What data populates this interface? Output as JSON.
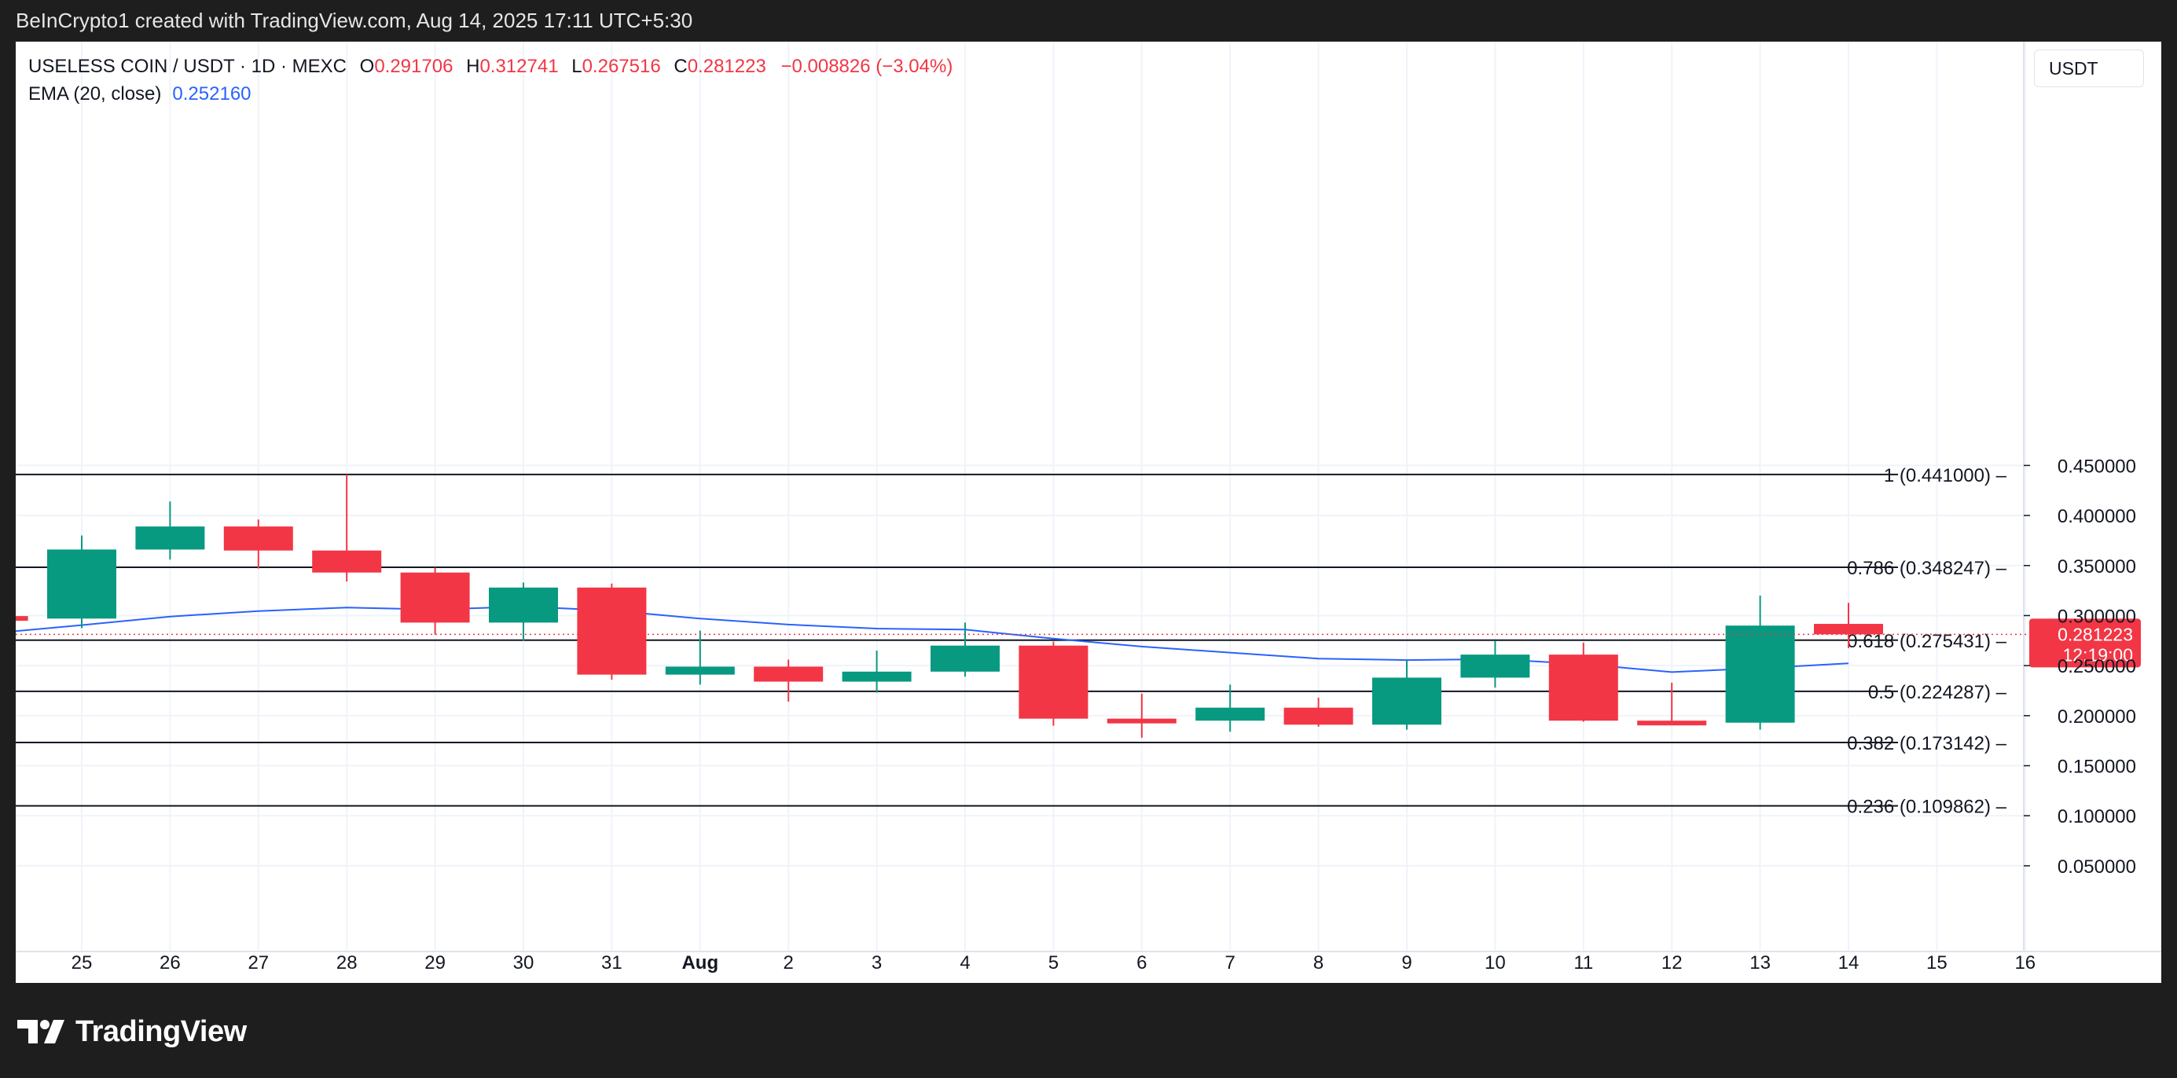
{
  "header": {
    "attribution": "BeInCrypto1 created with TradingView.com, Aug 14, 2025 17:11 UTC+5:30"
  },
  "legend": {
    "symbol": "USELESS COIN / USDT · 1D · MEXC",
    "open_label": "O",
    "open_value": "0.291706",
    "high_label": "H",
    "high_value": "0.312741",
    "low_label": "L",
    "low_value": "0.267516",
    "close_label": "C",
    "close_value": "0.281223",
    "change": "−0.008826 (−3.04%)",
    "ema_label": "EMA (20, close)",
    "ema_value": "0.252160"
  },
  "currency": "USDT",
  "footer": {
    "brand": "TradingView"
  },
  "colors": {
    "up": "#089981",
    "down": "#f23645",
    "ema": "#2962ff",
    "grid": "#f0f3fa",
    "fib_line": "#131722",
    "axis_text": "#131722",
    "price_tag": "#f23645"
  },
  "chart_data": {
    "type": "candlestick",
    "y_axis_side": "right",
    "x_tick_labels": [
      "25",
      "26",
      "27",
      "28",
      "29",
      "30",
      "31",
      "Aug",
      "2",
      "3",
      "4",
      "5",
      "6",
      "7",
      "8",
      "9",
      "10",
      "11",
      "12",
      "13",
      "14",
      "15",
      "16"
    ],
    "y_tick_labels": [
      "0.450000",
      "0.400000",
      "0.350000",
      "0.300000",
      "0.250000",
      "0.200000",
      "0.150000",
      "0.100000",
      "0.050000"
    ],
    "y_tick_values": [
      0.45,
      0.4,
      0.35,
      0.3,
      0.25,
      0.2,
      0.15,
      0.1,
      0.05
    ],
    "grid": true,
    "candles": [
      {
        "date": "24",
        "open": 0.2995,
        "high": 0.3005,
        "low": 0.2955,
        "close": 0.2975
      },
      {
        "date": "25",
        "open": 0.297,
        "high": 0.38,
        "low": 0.2875,
        "close": 0.366
      },
      {
        "date": "26",
        "open": 0.366,
        "high": 0.414,
        "low": 0.356,
        "close": 0.389
      },
      {
        "date": "27",
        "open": 0.389,
        "high": 0.396,
        "low": 0.347,
        "close": 0.365
      },
      {
        "date": "28",
        "open": 0.365,
        "high": 0.441,
        "low": 0.334,
        "close": 0.343
      },
      {
        "date": "29",
        "open": 0.343,
        "high": 0.348,
        "low": 0.281,
        "close": 0.293
      },
      {
        "date": "30",
        "open": 0.293,
        "high": 0.333,
        "low": 0.275,
        "close": 0.328
      },
      {
        "date": "31",
        "open": 0.328,
        "high": 0.332,
        "low": 0.236,
        "close": 0.241
      },
      {
        "date": "Aug 1",
        "open": 0.241,
        "high": 0.285,
        "low": 0.231,
        "close": 0.249
      },
      {
        "date": "Aug 2",
        "open": 0.249,
        "high": 0.256,
        "low": 0.214,
        "close": 0.234
      },
      {
        "date": "Aug 3",
        "open": 0.234,
        "high": 0.265,
        "low": 0.223,
        "close": 0.244
      },
      {
        "date": "Aug 4",
        "open": 0.244,
        "high": 0.293,
        "low": 0.239,
        "close": 0.27
      },
      {
        "date": "Aug 5",
        "open": 0.27,
        "high": 0.274,
        "low": 0.19,
        "close": 0.197
      },
      {
        "date": "Aug 6",
        "open": 0.197,
        "high": 0.222,
        "low": 0.178,
        "close": 0.194
      },
      {
        "date": "Aug 7",
        "open": 0.195,
        "high": 0.231,
        "low": 0.184,
        "close": 0.208
      },
      {
        "date": "Aug 8",
        "open": 0.208,
        "high": 0.218,
        "low": 0.189,
        "close": 0.191
      },
      {
        "date": "Aug 9",
        "open": 0.191,
        "high": 0.255,
        "low": 0.186,
        "close": 0.238
      },
      {
        "date": "Aug 10",
        "open": 0.238,
        "high": 0.275,
        "low": 0.228,
        "close": 0.261
      },
      {
        "date": "Aug 11",
        "open": 0.261,
        "high": 0.273,
        "low": 0.194,
        "close": 0.195
      },
      {
        "date": "Aug 12",
        "open": 0.195,
        "high": 0.233,
        "low": 0.191,
        "close": 0.192
      },
      {
        "date": "Aug 13",
        "open": 0.193,
        "high": 0.32,
        "low": 0.186,
        "close": 0.29
      },
      {
        "date": "Aug 14",
        "open": 0.291706,
        "high": 0.312741,
        "low": 0.267516,
        "close": 0.281223
      }
    ],
    "ema": [
      0.2825,
      0.2905,
      0.299,
      0.3045,
      0.308,
      0.306,
      0.309,
      0.305,
      0.297,
      0.291,
      0.287,
      0.286,
      0.277,
      0.269,
      0.263,
      0.257,
      0.2555,
      0.2565,
      0.2515,
      0.2435,
      0.2475,
      0.2522
    ],
    "fib_levels": [
      {
        "label": "1 (0.441000)",
        "value": 0.441
      },
      {
        "label": "0.786 (0.348247)",
        "value": 0.348247
      },
      {
        "label": "0.618 (0.275431)",
        "value": 0.275431
      },
      {
        "label": "0.5 (0.224287)",
        "value": 0.224287
      },
      {
        "label": "0.382 (0.173142)",
        "value": 0.173142
      },
      {
        "label": "0.236 (0.109862)",
        "value": 0.109862
      }
    ],
    "last_price": "0.281223",
    "countdown": "12:19:00",
    "last_price_value": 0.281223
  }
}
